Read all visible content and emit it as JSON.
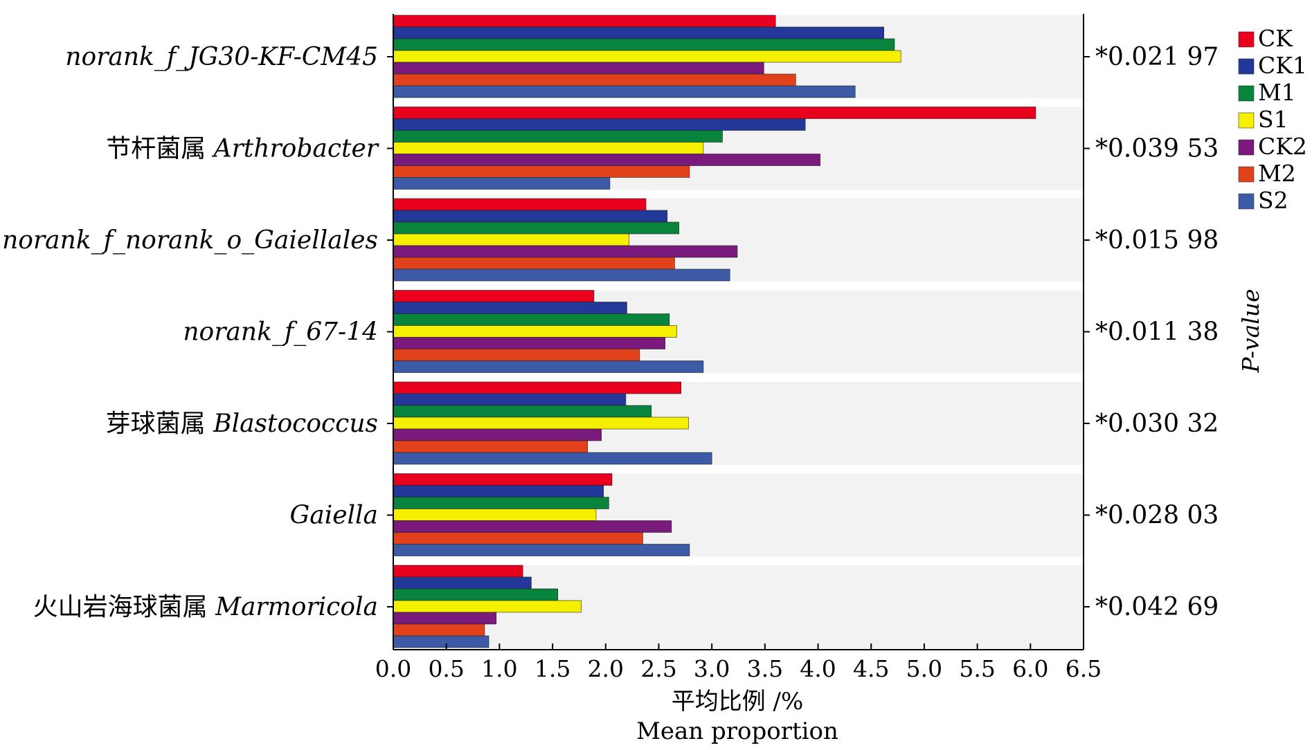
{
  "chart_data": {
    "type": "bar",
    "orientation": "horizontal",
    "categories": [
      {
        "zh": "",
        "name": "norank_f_JG30-KF-CM45"
      },
      {
        "zh": "节杆菌属 ",
        "name": "Arthrobacter"
      },
      {
        "zh": "",
        "name": "norank_f_norank_o_Gaiellales"
      },
      {
        "zh": "",
        "name": "norank_f_67-14"
      },
      {
        "zh": "芽球菌属 ",
        "name": "Blastococcus"
      },
      {
        "zh": "",
        "name": "Gaiella"
      },
      {
        "zh": "火山岩海球菌属 ",
        "name": "Marmoricola"
      }
    ],
    "series": [
      {
        "name": "CK",
        "color": "#e8001c",
        "values": [
          3.6,
          6.05,
          2.38,
          1.89,
          2.71,
          2.06,
          1.22
        ]
      },
      {
        "name": "CK1",
        "color": "#24389a",
        "values": [
          4.62,
          3.88,
          2.58,
          2.2,
          2.19,
          1.98,
          1.3
        ]
      },
      {
        "name": "M1",
        "color": "#08843c",
        "values": [
          4.72,
          3.1,
          2.69,
          2.6,
          2.43,
          2.03,
          1.55
        ]
      },
      {
        "name": "S1",
        "color": "#f5f000",
        "values": [
          4.78,
          2.92,
          2.22,
          2.67,
          2.78,
          1.91,
          1.77
        ]
      },
      {
        "name": "CK2",
        "color": "#791a7c",
        "values": [
          3.49,
          4.02,
          3.24,
          2.56,
          1.96,
          2.62,
          0.97
        ]
      },
      {
        "name": "M2",
        "color": "#e2421b",
        "values": [
          3.79,
          2.79,
          2.65,
          2.32,
          1.83,
          2.35,
          0.86
        ]
      },
      {
        "name": "S2",
        "color": "#3d5aa6",
        "values": [
          4.35,
          2.04,
          3.17,
          2.92,
          3.0,
          2.79,
          0.9
        ]
      }
    ],
    "p_values": [
      "*0.021 97",
      "*0.039 53",
      "*0.015 98",
      "*0.011 38",
      "*0.030 32",
      "*0.028 03",
      "*0.042 69"
    ],
    "xlim": [
      0.0,
      6.5
    ],
    "xticks": [
      "0.0",
      "0.5",
      "1.0",
      "1.5",
      "2.0",
      "2.5",
      "3.0",
      "3.5",
      "4.0",
      "4.5",
      "5.0",
      "5.5",
      "6.0",
      "6.5"
    ],
    "xlabel_zh": "平均比例 /%",
    "xlabel_en": "Mean proportion",
    "right_axis_label": "P-value",
    "legend_position": "top-right",
    "band_color": "#f2f2f2"
  }
}
